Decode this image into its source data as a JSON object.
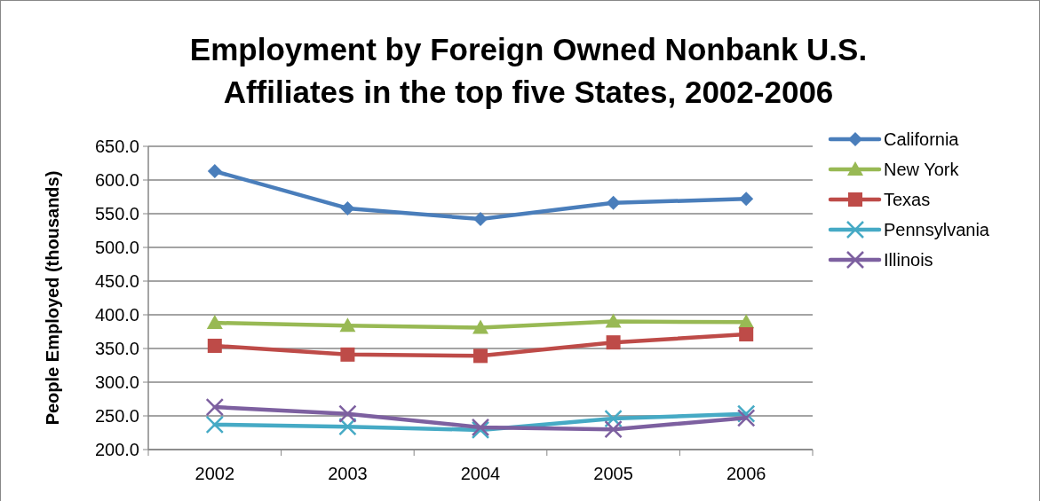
{
  "chart_data": {
    "type": "line",
    "title": "Employment by Foreign Owned Nonbank U.S. Affiliates in the top five States, 2002-2006",
    "ylabel": "People Employed (thousands)",
    "categories": [
      "2002",
      "2003",
      "2004",
      "2005",
      "2006"
    ],
    "series": [
      {
        "name": "California",
        "color": "#4a7ebb",
        "marker": "diamond",
        "values": [
          613,
          558,
          542,
          566,
          572
        ]
      },
      {
        "name": "New York",
        "color": "#98b954",
        "marker": "triangle",
        "values": [
          388,
          384,
          381,
          390,
          389
        ]
      },
      {
        "name": "Texas",
        "color": "#be4b48",
        "marker": "square",
        "values": [
          354,
          341,
          339,
          359,
          371
        ]
      },
      {
        "name": "Pennsylvania",
        "color": "#46aac5",
        "marker": "cross",
        "values": [
          237,
          234,
          229,
          246,
          253
        ]
      },
      {
        "name": "Illinois",
        "color": "#7d60a0",
        "marker": "cross",
        "values": [
          263,
          253,
          233,
          230,
          247
        ]
      }
    ],
    "ylim": [
      200,
      650
    ],
    "yticks": [
      {
        "value": 200,
        "label": "200.0"
      },
      {
        "value": 250,
        "label": "250.0"
      },
      {
        "value": 300,
        "label": "300.0"
      },
      {
        "value": 350,
        "label": "350.0"
      },
      {
        "value": 400,
        "label": "400.0"
      },
      {
        "value": 450,
        "label": "450.0"
      },
      {
        "value": 500,
        "label": "500.0"
      },
      {
        "value": 550,
        "label": "550.0"
      },
      {
        "value": 600,
        "label": "600.0"
      },
      {
        "value": 650,
        "label": "650.0"
      }
    ],
    "grid": "y",
    "legend": "top right",
    "line_style": "solid"
  }
}
